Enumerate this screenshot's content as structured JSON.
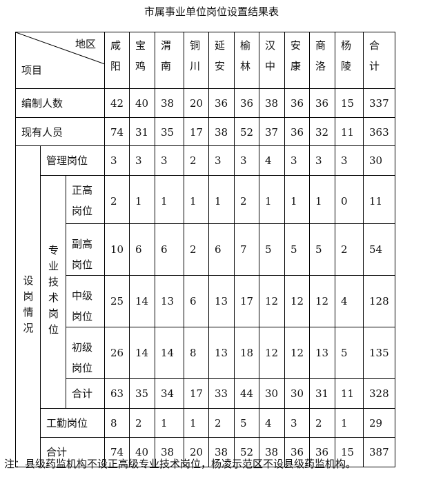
{
  "title": "市属事业单位岗位设置结果表",
  "header": {
    "corner_top": "地区",
    "corner_bottom": "项目",
    "regions": [
      [
        "咸",
        "阳"
      ],
      [
        "宝",
        "鸡"
      ],
      [
        "渭",
        "南"
      ],
      [
        "铜",
        "川"
      ],
      [
        "延",
        "安"
      ],
      [
        "榆",
        "林"
      ],
      [
        "汉",
        "中"
      ],
      [
        "安",
        "康"
      ],
      [
        "商",
        "洛"
      ],
      [
        "杨",
        "陵"
      ],
      [
        "合",
        "计"
      ]
    ]
  },
  "rows": {
    "bianzhi": {
      "label": "编制人数",
      "values": [
        "42",
        "40",
        "38",
        "20",
        "36",
        "36",
        "38",
        "36",
        "36",
        "15",
        "337"
      ]
    },
    "xianyou": {
      "label": "现有人员",
      "values": [
        "74",
        "31",
        "35",
        "17",
        "38",
        "52",
        "37",
        "36",
        "32",
        "11",
        "363"
      ]
    },
    "group_label": "设岗情况",
    "guanli": {
      "label": "管理岗位",
      "values": [
        "3",
        "3",
        "3",
        "2",
        "3",
        "3",
        "4",
        "3",
        "3",
        "3",
        "30"
      ]
    },
    "zhuanye_label": "专业技术岗位",
    "zhenggao": {
      "label": [
        "正高",
        "岗位"
      ],
      "values": [
        "2",
        "1",
        "1",
        "1",
        "1",
        "2",
        "1",
        "1",
        "1",
        "0",
        "11"
      ]
    },
    "fugao": {
      "label": [
        "副高",
        "岗位"
      ],
      "values": [
        "10",
        "6",
        "6",
        "2",
        "6",
        "7",
        "5",
        "5",
        "5",
        "2",
        "54"
      ]
    },
    "zhongji": {
      "label": [
        "中级",
        "岗位"
      ],
      "values": [
        "25",
        "14",
        "13",
        "6",
        "13",
        "17",
        "12",
        "12",
        "12",
        "4",
        "128"
      ]
    },
    "chuji": {
      "label": [
        "初级",
        "岗位"
      ],
      "values": [
        "26",
        "14",
        "14",
        "8",
        "13",
        "18",
        "12",
        "12",
        "13",
        "5",
        "135"
      ]
    },
    "zhuanye_total": {
      "label": "合计",
      "values": [
        "63",
        "35",
        "34",
        "17",
        "33",
        "44",
        "30",
        "30",
        "31",
        "11",
        "328"
      ]
    },
    "gongqin": {
      "label": "工勤岗位",
      "values": [
        "8",
        "2",
        "1",
        "1",
        "2",
        "5",
        "4",
        "3",
        "2",
        "1",
        "29"
      ]
    },
    "total": {
      "label": "合计",
      "values": [
        "74",
        "40",
        "38",
        "20",
        "38",
        "52",
        "38",
        "36",
        "36",
        "15",
        "387"
      ]
    }
  },
  "note": "注：县级药监机构不设正高级专业技术岗位，杨凌示范区不设县级药监机构。"
}
